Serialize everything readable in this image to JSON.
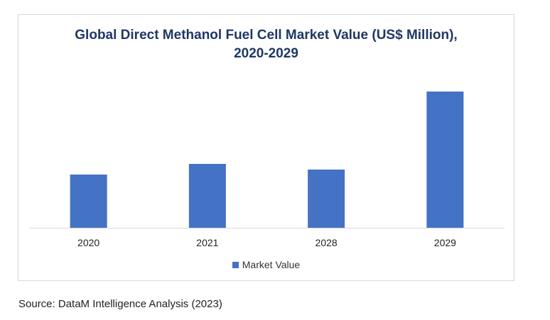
{
  "chart_data": {
    "type": "bar",
    "title_line1": "Global Direct Methanol Fuel Cell Market Value (US$ Million),",
    "title_line2": "2020-2029",
    "categories": [
      "2020",
      "2021",
      "2028",
      "2029"
    ],
    "series": [
      {
        "name": "Market Value",
        "values": [
          75,
          90,
          82,
          192
        ],
        "color": "#4472c4"
      }
    ],
    "ylim": [
      0,
      200
    ],
    "grid": false,
    "legend_position": "bottom"
  },
  "source": "Source: DataM Intelligence Analysis (2023)"
}
